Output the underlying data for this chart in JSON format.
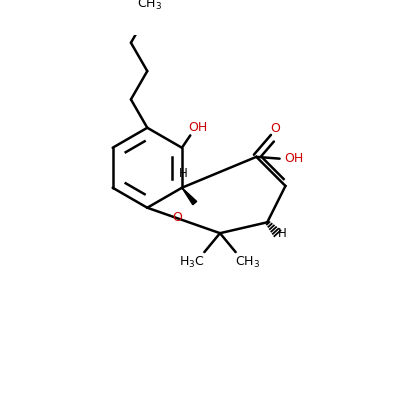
{
  "bg_color": "#ffffff",
  "bond_color": "#000000",
  "red_color": "#cc0000",
  "line_width": 1.8,
  "figsize": [
    4.0,
    4.0
  ],
  "dpi": 100,
  "xlim": [
    0,
    10
  ],
  "ylim": [
    0,
    10
  ]
}
